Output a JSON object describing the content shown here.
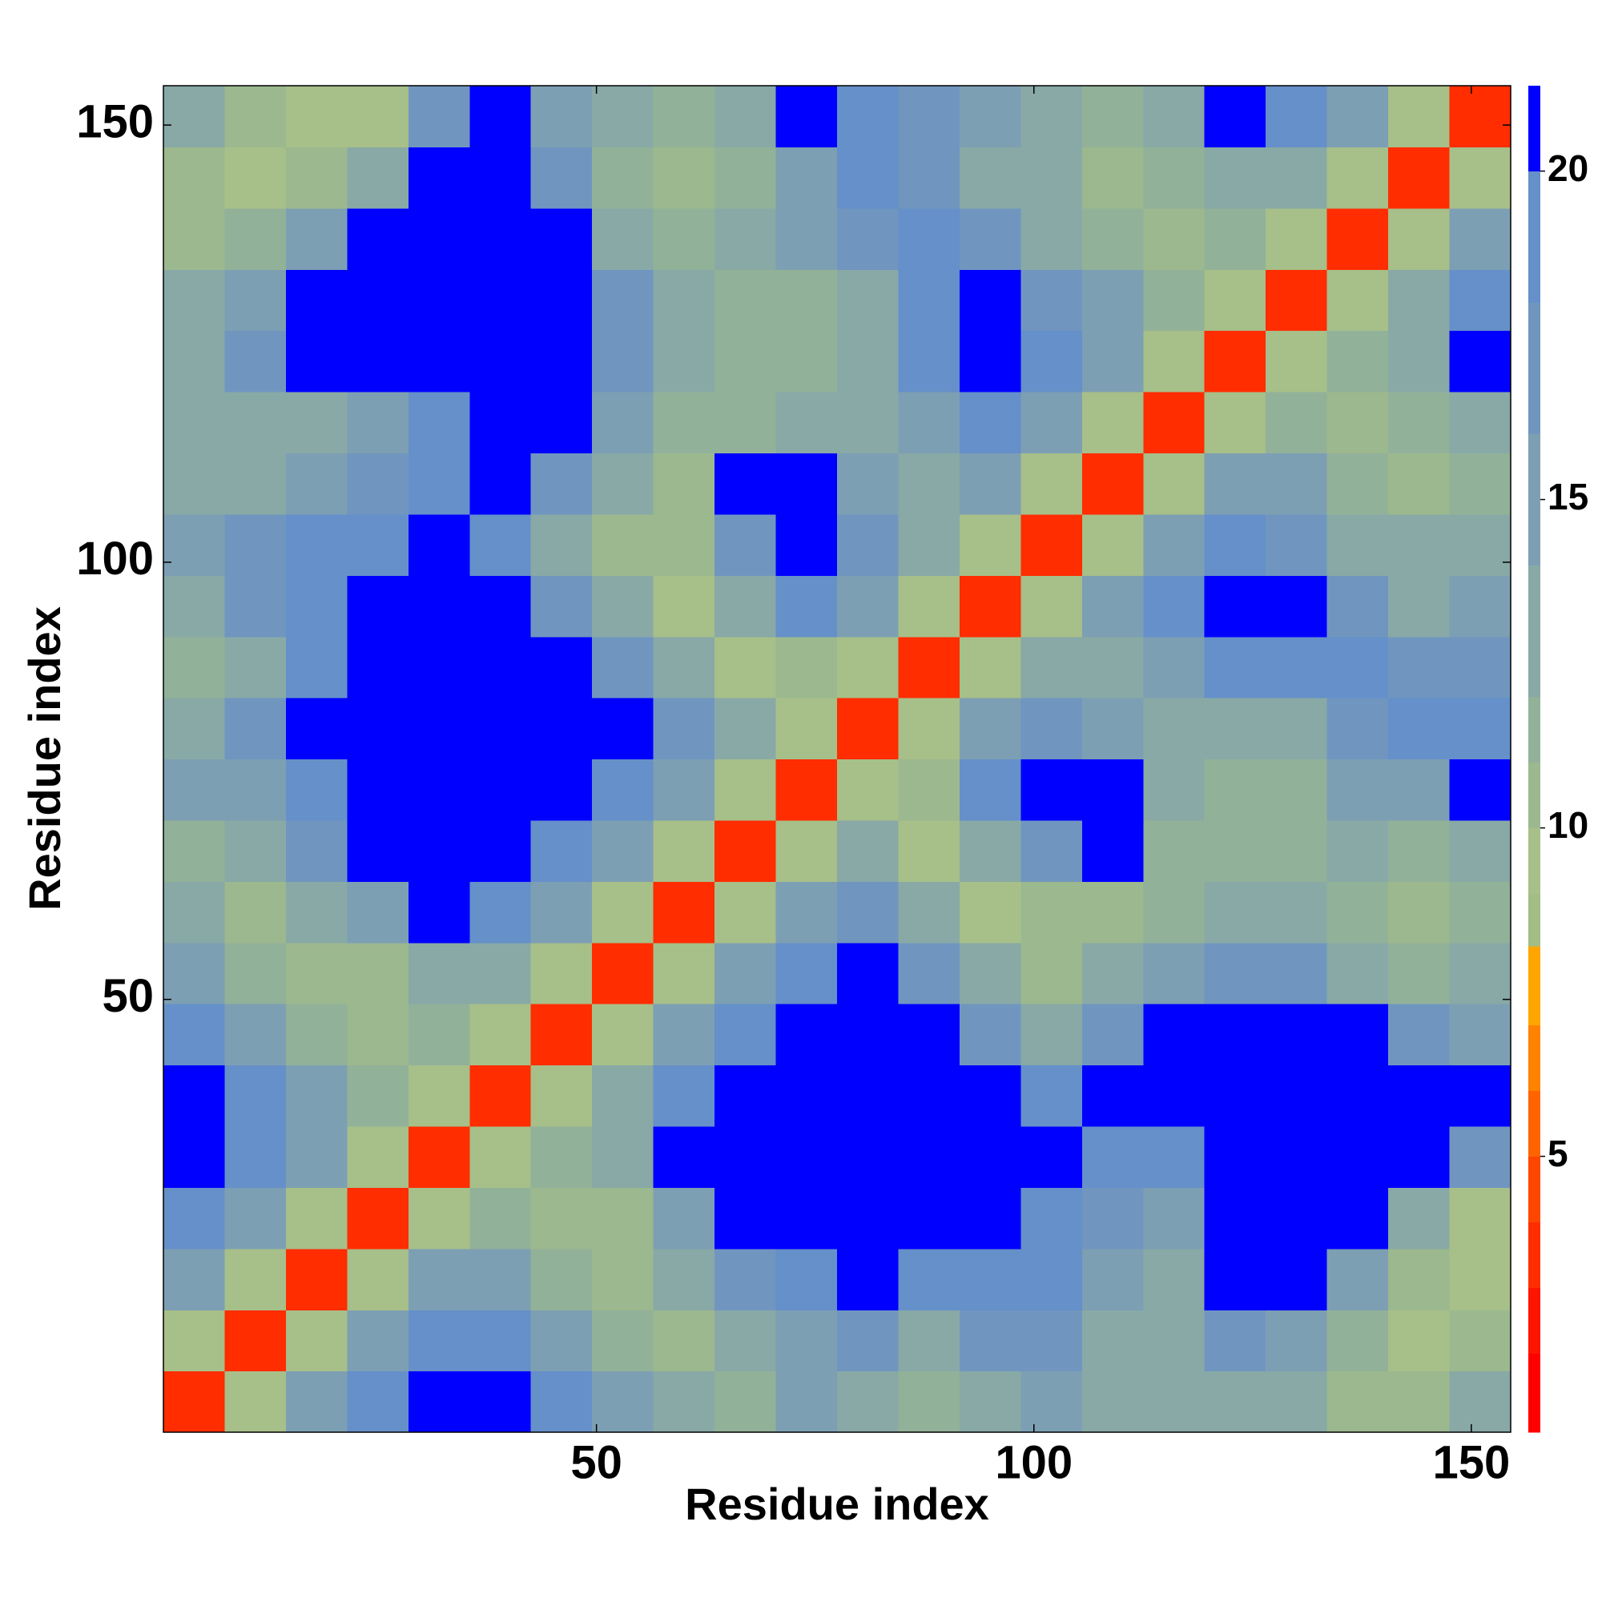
{
  "chart_data": {
    "type": "heatmap",
    "x_label": "Residue index",
    "y_label": "Residue index",
    "x": [
      4,
      11,
      18,
      25,
      32,
      39,
      46,
      53,
      60,
      67,
      74,
      81,
      88,
      95,
      102,
      109,
      116,
      123,
      130,
      137,
      144,
      151
    ],
    "y": [
      4,
      11,
      18,
      25,
      32,
      39,
      46,
      53,
      60,
      67,
      74,
      81,
      88,
      95,
      102,
      109,
      116,
      123,
      130,
      137,
      144,
      151
    ],
    "z": [
      [
        4,
        10,
        15,
        19,
        21,
        21,
        19,
        15,
        13,
        12,
        15,
        14,
        12,
        13,
        15,
        14,
        13,
        14,
        13,
        11,
        11,
        13
      ],
      [
        10,
        4,
        10,
        15,
        19,
        19,
        15,
        12,
        11,
        13,
        16,
        17,
        14,
        17,
        17,
        14,
        13,
        17,
        15,
        12,
        10,
        11
      ],
      [
        15,
        10,
        4,
        10,
        15,
        15,
        12,
        11,
        13,
        18,
        20,
        21,
        19,
        20,
        19,
        15,
        14,
        21,
        21,
        15,
        11,
        10
      ],
      [
        19,
        15,
        10,
        4,
        10,
        12,
        11,
        11,
        16,
        21,
        21,
        21,
        21,
        21,
        19,
        17,
        15,
        21,
        21,
        21,
        14,
        10
      ],
      [
        21,
        19,
        15,
        10,
        4,
        10,
        12,
        14,
        21,
        21,
        21,
        21,
        21,
        21,
        21,
        20,
        19,
        21,
        21,
        21,
        21,
        17
      ],
      [
        21,
        19,
        15,
        12,
        10,
        4,
        10,
        14,
        19,
        21,
        21,
        21,
        21,
        21,
        19,
        21,
        21,
        21,
        21,
        21,
        21,
        21
      ],
      [
        19,
        15,
        12,
        11,
        12,
        10,
        4,
        10,
        15,
        19,
        21,
        21,
        21,
        17,
        14,
        18,
        21,
        21,
        21,
        21,
        18,
        16
      ],
      [
        15,
        12,
        11,
        11,
        14,
        14,
        10,
        4,
        10,
        15,
        19,
        21,
        17,
        13,
        11,
        13,
        16,
        18,
        18,
        14,
        12,
        13
      ],
      [
        13,
        11,
        13,
        16,
        21,
        19,
        15,
        10,
        4,
        10,
        15,
        18,
        13,
        10,
        11,
        11,
        12,
        13,
        13,
        12,
        11,
        12
      ],
      [
        12,
        13,
        18,
        21,
        21,
        21,
        19,
        15,
        10,
        4,
        10,
        14,
        10,
        14,
        17,
        21,
        12,
        12,
        12,
        13,
        12,
        14
      ],
      [
        15,
        16,
        20,
        21,
        21,
        21,
        21,
        19,
        15,
        10,
        4,
        10,
        11,
        19,
        21,
        21,
        13,
        12,
        12,
        15,
        15,
        21
      ],
      [
        14,
        17,
        21,
        21,
        21,
        21,
        21,
        21,
        18,
        14,
        10,
        4,
        10,
        15,
        18,
        15,
        14,
        13,
        14,
        17,
        19,
        19
      ],
      [
        12,
        14,
        19,
        21,
        21,
        21,
        21,
        17,
        13,
        10,
        11,
        10,
        4,
        10,
        14,
        13,
        16,
        19,
        19,
        19,
        17,
        17
      ],
      [
        13,
        17,
        20,
        21,
        21,
        21,
        17,
        13,
        10,
        14,
        19,
        15,
        10,
        4,
        10,
        15,
        19,
        21,
        21,
        17,
        14,
        15
      ],
      [
        15,
        17,
        19,
        19,
        21,
        19,
        14,
        11,
        11,
        17,
        21,
        18,
        14,
        10,
        4,
        10,
        15,
        19,
        18,
        14,
        13,
        13
      ],
      [
        14,
        14,
        15,
        17,
        20,
        21,
        18,
        13,
        11,
        21,
        21,
        15,
        13,
        15,
        10,
        4,
        10,
        15,
        16,
        12,
        11,
        12
      ],
      [
        13,
        13,
        14,
        15,
        19,
        21,
        21,
        16,
        12,
        12,
        13,
        14,
        16,
        19,
        15,
        10,
        4,
        10,
        12,
        11,
        12,
        14
      ],
      [
        14,
        17,
        21,
        21,
        21,
        21,
        21,
        18,
        13,
        12,
        12,
        13,
        19,
        21,
        19,
        15,
        10,
        4,
        10,
        12,
        14,
        21
      ],
      [
        13,
        15,
        21,
        21,
        21,
        21,
        21,
        18,
        13,
        12,
        12,
        14,
        19,
        21,
        18,
        16,
        12,
        10,
        4,
        10,
        14,
        19
      ],
      [
        11,
        12,
        15,
        21,
        21,
        21,
        21,
        14,
        12,
        13,
        15,
        17,
        19,
        17,
        14,
        12,
        11,
        12,
        10,
        4,
        10,
        15
      ],
      [
        11,
        10,
        11,
        14,
        21,
        21,
        18,
        12,
        11,
        12,
        15,
        19,
        17,
        14,
        13,
        11,
        12,
        14,
        14,
        10,
        4,
        10
      ],
      [
        13,
        11,
        10,
        10,
        17,
        21,
        16,
        13,
        12,
        14,
        21,
        19,
        17,
        15,
        13,
        12,
        14,
        21,
        19,
        15,
        10,
        4
      ]
    ],
    "xlim": [
      0.5,
      154.5
    ],
    "ylim": [
      0.5,
      154.5
    ],
    "xticks": [
      50,
      100,
      150
    ],
    "yticks": [
      50,
      100,
      150
    ],
    "colorbar": {
      "levels": [
        0.8,
        2,
        3,
        4,
        5,
        6,
        7,
        8.2,
        9,
        10,
        11,
        12,
        14,
        16,
        18,
        20,
        21.3
      ],
      "colors": [
        "#ff0000",
        "#ff1400",
        "#ff2d00",
        "#ff4600",
        "#ff6400",
        "#ff8200",
        "#ffa500",
        "#a3bd85",
        "#a7bf89",
        "#9cb88e",
        "#92b199",
        "#88a9a6",
        "#7d9fb3",
        "#7096c0",
        "#6590c9",
        "#0000ff"
      ],
      "ticks": [
        5,
        10,
        15,
        20
      ]
    }
  }
}
